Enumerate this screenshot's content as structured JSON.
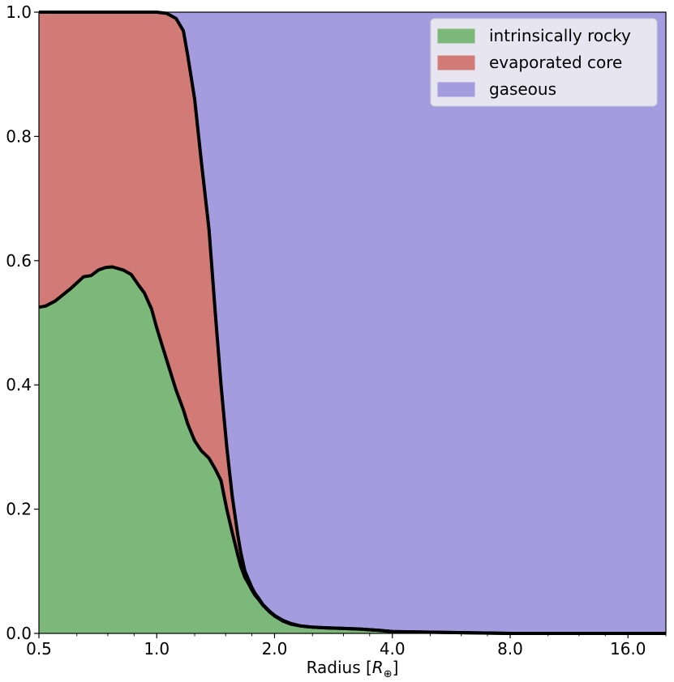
{
  "chart_data": {
    "type": "area",
    "stacked": true,
    "xscale": "log2",
    "xlim": [
      0.5,
      20
    ],
    "ylim": [
      0.0,
      1.0
    ],
    "xlabel": "Radius [",
    "xlabel_symbol": "R",
    "xlabel_subscript": "⊕",
    "xlabel_end": "]",
    "grid": false,
    "legend_position": "top-right",
    "xticks": [
      {
        "value": 0.5,
        "label": "0.5"
      },
      {
        "value": 1.0,
        "label": "1.0"
      },
      {
        "value": 2.0,
        "label": "2.0"
      },
      {
        "value": 4.0,
        "label": "4.0"
      },
      {
        "value": 8.0,
        "label": "8.0"
      },
      {
        "value": 16.0,
        "label": "16.0"
      }
    ],
    "yticks": [
      {
        "value": 0.0,
        "label": "0.0"
      },
      {
        "value": 0.2,
        "label": "0.2"
      },
      {
        "value": 0.4,
        "label": "0.4"
      },
      {
        "value": 0.6,
        "label": "0.6"
      },
      {
        "value": 0.8,
        "label": "0.8"
      },
      {
        "value": 1.0,
        "label": "1.0"
      }
    ],
    "series": [
      {
        "name": "intrinsically rocky",
        "color": "#7cb87a"
      },
      {
        "name": "evaporated core",
        "color": "#d17a76"
      },
      {
        "name": "gaseous",
        "color": "#a59ce0"
      }
    ],
    "radius": [
      0.5,
      0.52,
      0.55,
      0.6,
      0.65,
      0.68,
      0.71,
      0.74,
      0.77,
      0.82,
      0.86,
      0.9,
      0.93,
      0.97,
      1.0,
      1.06,
      1.12,
      1.17,
      1.2,
      1.25,
      1.3,
      1.36,
      1.41,
      1.46,
      1.51,
      1.56,
      1.61,
      1.64,
      1.68,
      1.72,
      1.75,
      1.78,
      1.82,
      1.87,
      1.94,
      2.0,
      2.1,
      2.2,
      2.33,
      2.5,
      2.7,
      3.0,
      3.3,
      3.7,
      4.0,
      5.0,
      8.0,
      20.0
    ],
    "rocky_fraction": [
      0.525,
      0.527,
      0.535,
      0.554,
      0.574,
      0.576,
      0.585,
      0.589,
      0.59,
      0.585,
      0.578,
      0.56,
      0.548,
      0.522,
      0.492,
      0.44,
      0.392,
      0.36,
      0.337,
      0.31,
      0.294,
      0.282,
      0.265,
      0.246,
      0.2,
      0.162,
      0.127,
      0.108,
      0.09,
      0.079,
      0.07,
      0.062,
      0.055,
      0.045,
      0.035,
      0.028,
      0.02,
      0.015,
      0.012,
      0.01,
      0.009,
      0.008,
      0.007,
      0.005,
      0.003,
      0.002,
      0.0,
      0.0
    ],
    "rocky_plus_evaporated_fraction": [
      1.0,
      1.0,
      1.0,
      1.0,
      1.0,
      1.0,
      1.0,
      1.0,
      1.0,
      1.0,
      1.0,
      1.0,
      1.0,
      1.0,
      1.0,
      0.998,
      0.99,
      0.97,
      0.93,
      0.86,
      0.76,
      0.65,
      0.52,
      0.4,
      0.3,
      0.22,
      0.16,
      0.13,
      0.1,
      0.085,
      0.074,
      0.065,
      0.057,
      0.046,
      0.036,
      0.029,
      0.021,
      0.016,
      0.012,
      0.01,
      0.009,
      0.008,
      0.007,
      0.005,
      0.003,
      0.002,
      0.0,
      0.0
    ]
  }
}
